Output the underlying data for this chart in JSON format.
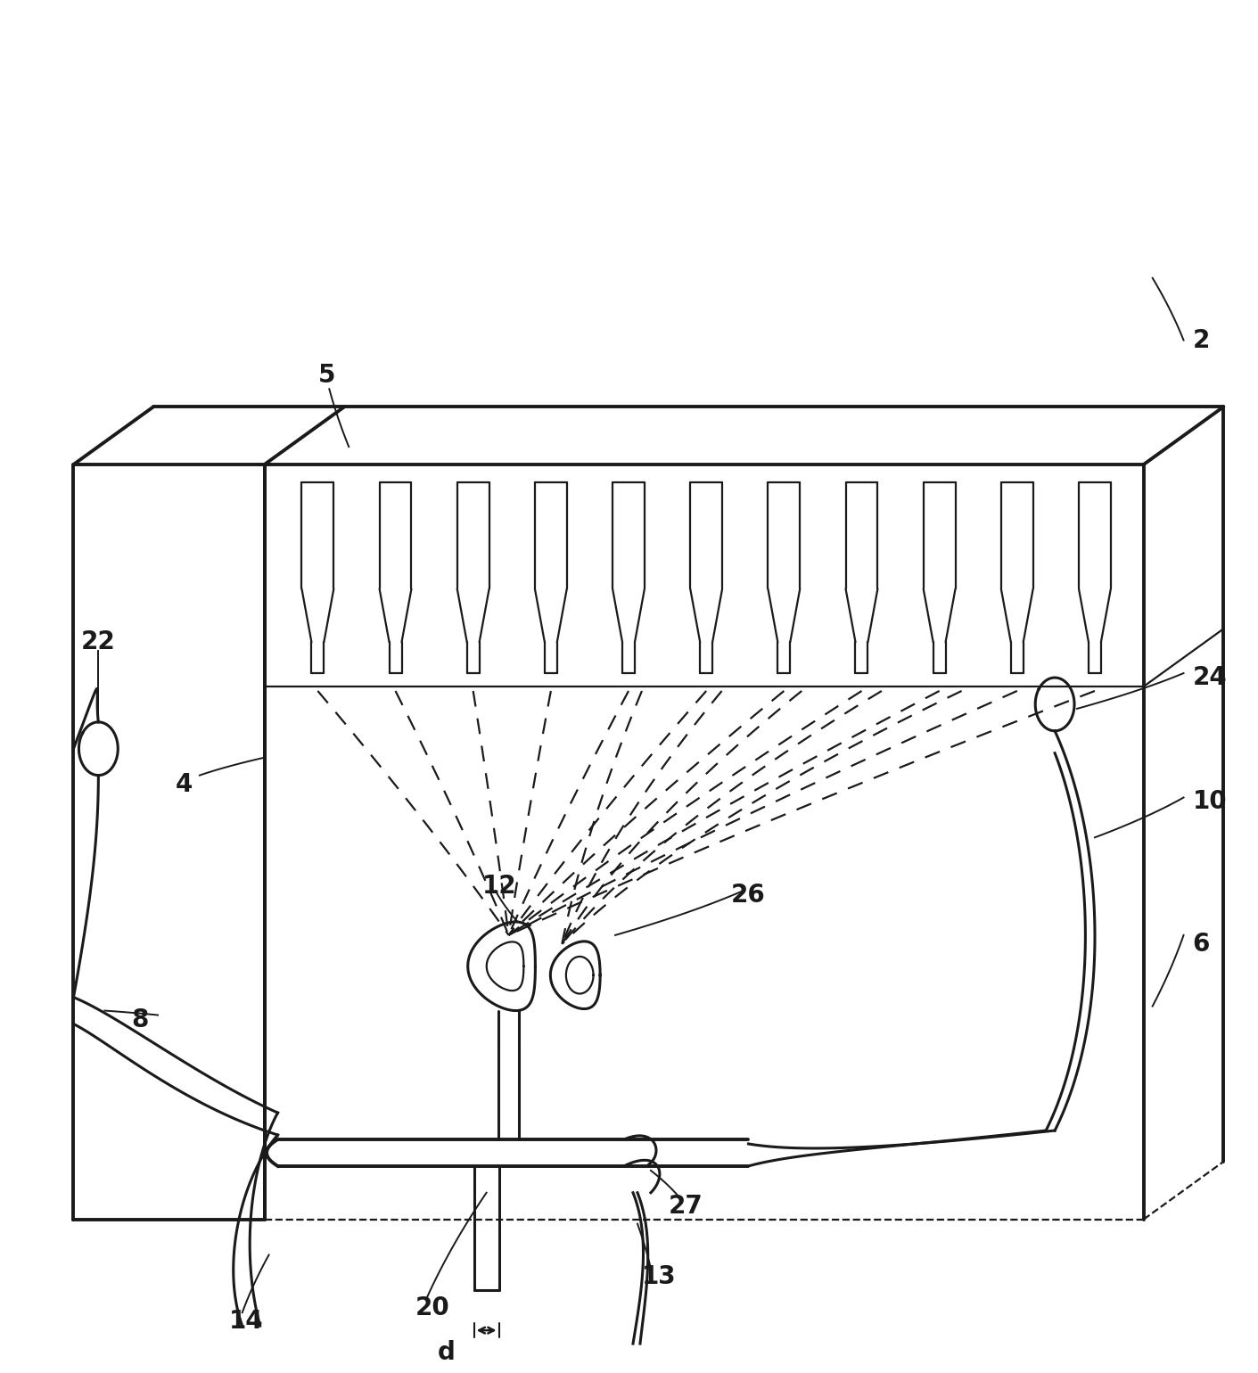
{
  "bg_color": "#ffffff",
  "line_color": "#1a1a1a",
  "lw_main": 2.2,
  "lw_thin": 1.6,
  "lw_thick": 2.8,
  "label_fontsize": 20,
  "figsize": [
    14.11,
    15.4
  ],
  "dpi": 100
}
